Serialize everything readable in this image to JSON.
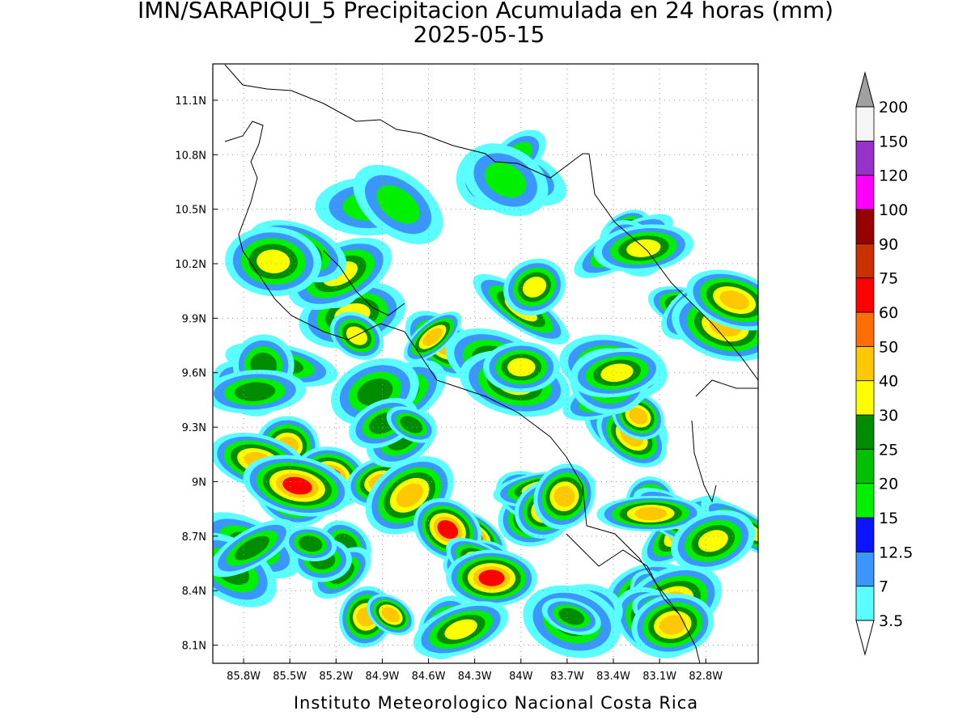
{
  "header": {
    "title": "IMN/SARAPIQUI_5 Precipitacion Acumulada en 24 horas (mm)",
    "date": "2025-05-15"
  },
  "map": {
    "xlim": [
      -86.0,
      -82.46
    ],
    "ylim": [
      8.0,
      11.3
    ],
    "xticks": [
      {
        "value": -85.8,
        "label": "85.8W"
      },
      {
        "value": -85.5,
        "label": "85.5W"
      },
      {
        "value": -85.2,
        "label": "85.2W"
      },
      {
        "value": -84.9,
        "label": "84.9W"
      },
      {
        "value": -84.6,
        "label": "84.6W"
      },
      {
        "value": -84.3,
        "label": "84.3W"
      },
      {
        "value": -84.0,
        "label": "84W"
      },
      {
        "value": -83.7,
        "label": "83.7W"
      },
      {
        "value": -83.4,
        "label": "83.4W"
      },
      {
        "value": -83.1,
        "label": "83.1W"
      },
      {
        "value": -82.8,
        "label": "82.8W"
      }
    ],
    "yticks": [
      {
        "value": 8.1,
        "label": "8.1N"
      },
      {
        "value": 8.4,
        "label": "8.4N"
      },
      {
        "value": 8.7,
        "label": "8.7N"
      },
      {
        "value": 9.0,
        "label": "9N"
      },
      {
        "value": 9.3,
        "label": "9.3N"
      },
      {
        "value": 9.6,
        "label": "9.6N"
      },
      {
        "value": 9.9,
        "label": "9.9N"
      },
      {
        "value": 10.2,
        "label": "10.2N"
      },
      {
        "value": 10.5,
        "label": "10.5N"
      },
      {
        "value": 10.8,
        "label": "10.8N"
      },
      {
        "value": 11.1,
        "label": "11.1N"
      }
    ]
  },
  "colorbar": {
    "levels": [
      3.5,
      7,
      12.5,
      15,
      20,
      25,
      30,
      40,
      50,
      60,
      75,
      90,
      100,
      120,
      150,
      200
    ],
    "colors": [
      "#5affff",
      "#3c96ff",
      "#0a14ff",
      "#00f000",
      "#00c000",
      "#008c00",
      "#ffff00",
      "#ffc800",
      "#ff6e00",
      "#ff0000",
      "#c83200",
      "#960000",
      "#ff00ff",
      "#9632c8",
      "#f5f5f5"
    ],
    "under_color": "#ffffff",
    "over_color": "#a0a0a0"
  },
  "footer": "Instituto Meteorologico Nacional Costa Rica"
}
